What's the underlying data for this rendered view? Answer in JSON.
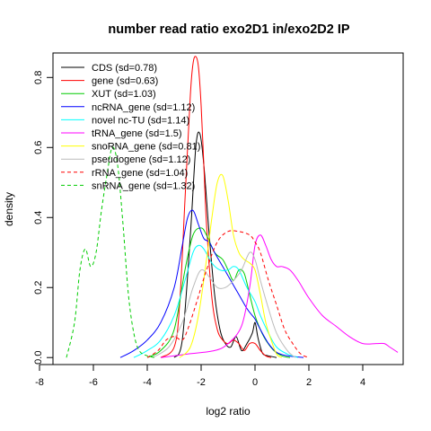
{
  "chart_data": {
    "type": "line",
    "title": "number read ratio exo2D1 in/exo2D2 IP",
    "xlabel": "log2 ratio",
    "ylabel": "density",
    "xlim": [
      -7.5,
      5.5
    ],
    "ylim": [
      -0.02,
      0.87
    ],
    "xticks": [
      -8,
      -6,
      -4,
      -2,
      0,
      2,
      4
    ],
    "yticks": [
      0.0,
      0.2,
      0.4,
      0.6,
      0.8
    ],
    "grid": false,
    "legend_position": "top-left",
    "series": [
      {
        "name": "CDS (sd=0.78)",
        "color": "#000000",
        "dash": "solid",
        "x": [
          -3.0,
          -2.7,
          -2.4,
          -2.2,
          -2.05,
          -1.9,
          -1.7,
          -1.5,
          -1.3,
          -1.1,
          -0.9,
          -0.7,
          -0.5,
          -0.3,
          -0.1,
          0.0,
          0.1,
          0.2,
          0.3,
          0.5,
          0.8
        ],
        "y": [
          0.0,
          0.05,
          0.35,
          0.6,
          0.64,
          0.55,
          0.35,
          0.18,
          0.08,
          0.04,
          0.03,
          0.06,
          0.02,
          0.04,
          0.07,
          0.1,
          0.06,
          0.03,
          0.01,
          0.005,
          0.0
        ]
      },
      {
        "name": "gene (sd=0.63)",
        "color": "#ff0000",
        "dash": "solid",
        "x": [
          -3.5,
          -3.0,
          -2.8,
          -2.6,
          -2.4,
          -2.3,
          -2.2,
          -2.1,
          -2.0,
          -1.9,
          -1.8,
          -1.6,
          -1.4,
          -1.2,
          -1.0,
          -0.8,
          -0.6,
          -0.4,
          -0.2,
          0.0,
          0.2,
          0.4,
          0.6
        ],
        "y": [
          0.0,
          0.03,
          0.15,
          0.45,
          0.75,
          0.84,
          0.86,
          0.83,
          0.72,
          0.55,
          0.38,
          0.17,
          0.08,
          0.05,
          0.04,
          0.05,
          0.04,
          0.02,
          0.04,
          0.04,
          0.02,
          0.005,
          0.0
        ]
      },
      {
        "name": "XUT (sd=1.03)",
        "color": "#00cc00",
        "dash": "solid",
        "x": [
          -4.0,
          -3.5,
          -3.0,
          -2.6,
          -2.3,
          -2.0,
          -1.8,
          -1.5,
          -1.2,
          -1.0,
          -0.8,
          -0.6,
          -0.4,
          -0.2,
          0.0,
          0.2,
          0.4,
          0.7,
          1.0,
          1.3
        ],
        "y": [
          0.0,
          0.02,
          0.08,
          0.25,
          0.35,
          0.37,
          0.35,
          0.3,
          0.28,
          0.25,
          0.22,
          0.25,
          0.24,
          0.18,
          0.12,
          0.08,
          0.05,
          0.02,
          0.005,
          0.0
        ]
      },
      {
        "name": "ncRNA_gene (sd=1.12)",
        "color": "#0000ff",
        "dash": "solid",
        "x": [
          -5.0,
          -4.5,
          -4.0,
          -3.5,
          -3.0,
          -2.7,
          -2.5,
          -2.3,
          -2.1,
          -1.9,
          -1.7,
          -1.5,
          -1.2,
          -0.9,
          -0.6,
          -0.3,
          -0.1,
          0.0,
          0.2,
          0.5,
          0.8,
          1.2,
          1.8
        ],
        "y": [
          0.0,
          0.02,
          0.05,
          0.1,
          0.2,
          0.32,
          0.4,
          0.42,
          0.38,
          0.34,
          0.33,
          0.3,
          0.26,
          0.22,
          0.18,
          0.14,
          0.12,
          0.11,
          0.08,
          0.04,
          0.015,
          0.005,
          0.0
        ]
      },
      {
        "name": "novel nc-TU (sd=1.14)",
        "color": "#00ffff",
        "dash": "solid",
        "x": [
          -4.5,
          -4.0,
          -3.5,
          -3.0,
          -2.6,
          -2.3,
          -2.1,
          -1.9,
          -1.6,
          -1.3,
          -1.0,
          -0.8,
          -0.6,
          -0.3,
          0.0,
          0.2,
          0.5,
          0.8,
          1.2,
          1.6
        ],
        "y": [
          0.0,
          0.02,
          0.05,
          0.12,
          0.22,
          0.3,
          0.32,
          0.31,
          0.27,
          0.25,
          0.25,
          0.26,
          0.25,
          0.2,
          0.16,
          0.12,
          0.07,
          0.03,
          0.01,
          0.0
        ]
      },
      {
        "name": "tRNA_gene (sd=1.5)",
        "color": "#ff00ff",
        "dash": "solid",
        "x": [
          -3.5,
          -2.5,
          -1.5,
          -1.0,
          -0.5,
          -0.2,
          0.0,
          0.2,
          0.4,
          0.6,
          0.8,
          1.0,
          1.3,
          1.6,
          2.0,
          2.5,
          3.0,
          3.5,
          4.0,
          4.5,
          4.8,
          5.0,
          5.3
        ],
        "y": [
          0.0,
          0.01,
          0.02,
          0.04,
          0.09,
          0.2,
          0.32,
          0.35,
          0.32,
          0.28,
          0.26,
          0.26,
          0.25,
          0.22,
          0.17,
          0.12,
          0.09,
          0.06,
          0.04,
          0.04,
          0.04,
          0.03,
          0.015
        ]
      },
      {
        "name": "snoRNA_gene (sd=0.81)",
        "color": "#ffff00",
        "dash": "solid",
        "x": [
          -2.8,
          -2.4,
          -2.1,
          -1.8,
          -1.6,
          -1.4,
          -1.2,
          -1.0,
          -0.8,
          -0.6,
          -0.4,
          -0.2,
          0.0,
          0.2,
          0.4,
          0.6,
          0.8,
          1.0
        ],
        "y": [
          0.0,
          0.03,
          0.12,
          0.28,
          0.4,
          0.5,
          0.52,
          0.45,
          0.35,
          0.3,
          0.28,
          0.27,
          0.25,
          0.18,
          0.1,
          0.05,
          0.01,
          0.0
        ]
      },
      {
        "name": "pseudogene (sd=1.12)",
        "color": "#bbbbbb",
        "dash": "solid",
        "x": [
          -3.8,
          -3.2,
          -2.7,
          -2.3,
          -2.0,
          -1.7,
          -1.4,
          -1.1,
          -0.8,
          -0.5,
          -0.2,
          0.0,
          0.2,
          0.5,
          0.8,
          1.2,
          1.5
        ],
        "y": [
          0.0,
          0.03,
          0.1,
          0.2,
          0.25,
          0.23,
          0.2,
          0.2,
          0.22,
          0.25,
          0.3,
          0.28,
          0.22,
          0.14,
          0.07,
          0.02,
          0.0
        ]
      },
      {
        "name": "rRNA_gene (sd=1.04)",
        "color": "#ff0000",
        "dash": "dashed",
        "x": [
          -4.0,
          -3.6,
          -3.3,
          -3.0,
          -2.7,
          -2.5,
          -2.2,
          -1.8,
          -1.4,
          -1.0,
          -0.6,
          -0.2,
          0.0,
          0.2,
          0.5,
          0.8,
          1.1,
          1.4,
          1.7,
          2.0
        ],
        "y": [
          0.0,
          0.02,
          0.05,
          0.06,
          0.05,
          0.08,
          0.15,
          0.25,
          0.33,
          0.36,
          0.36,
          0.35,
          0.33,
          0.3,
          0.22,
          0.15,
          0.08,
          0.04,
          0.01,
          0.0
        ]
      },
      {
        "name": "snRNA_gene (sd=1.32)",
        "color": "#00cc00",
        "dash": "dashed",
        "x": [
          -7.0,
          -6.7,
          -6.5,
          -6.3,
          -6.1,
          -5.9,
          -5.7,
          -5.5,
          -5.3,
          -5.1,
          -4.9,
          -4.7,
          -4.5,
          -4.3,
          -4.0,
          -3.7
        ],
        "y": [
          0.0,
          0.1,
          0.25,
          0.31,
          0.26,
          0.3,
          0.42,
          0.52,
          0.6,
          0.55,
          0.38,
          0.18,
          0.07,
          0.02,
          0.005,
          0.0
        ]
      }
    ]
  }
}
